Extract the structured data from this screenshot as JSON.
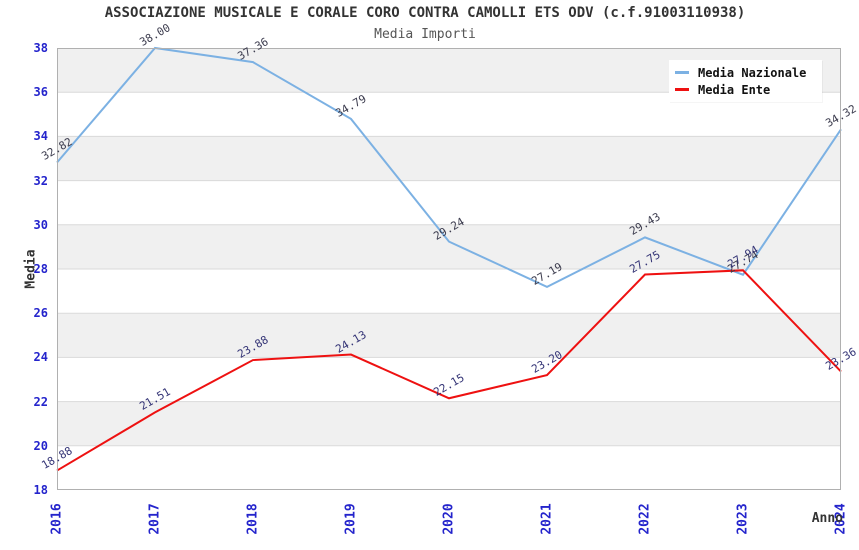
{
  "chart_data": {
    "type": "line",
    "title": "ASSOCIAZIONE MUSICALE E CORALE CORO CONTRA CAMOLLI ETS ODV (c.f.91003110938)",
    "subtitle": "Media Importi",
    "xlabel": "Anno",
    "ylabel": "Media",
    "x": [
      2016,
      2017,
      2018,
      2019,
      2020,
      2021,
      2022,
      2023,
      2024
    ],
    "series": [
      {
        "name": "Media Nazionale",
        "color": "#7CB1E3",
        "label_color": "#3C3C4E",
        "values": [
          32.82,
          38.0,
          37.36,
          34.79,
          29.24,
          27.19,
          29.43,
          27.74,
          34.32
        ]
      },
      {
        "name": "Media Ente",
        "color": "#EE1111",
        "label_color": "#343476",
        "values": [
          18.88,
          21.51,
          23.88,
          24.13,
          22.15,
          23.2,
          27.75,
          27.94,
          23.36
        ]
      }
    ],
    "ylim": [
      18,
      38
    ],
    "ytick_step": 2,
    "yticks": [
      18,
      20,
      22,
      24,
      26,
      28,
      30,
      32,
      34,
      36,
      38
    ],
    "grid": "horizontal",
    "band_colors": [
      "#F0F0F0",
      "#FFFFFF"
    ],
    "grid_color": "#DADADA",
    "border_color": "#B0B0B0",
    "tick_label_color": "#2424CC",
    "legend_position": "top-right",
    "value_labels": "rotated, two decimals, above each point"
  }
}
